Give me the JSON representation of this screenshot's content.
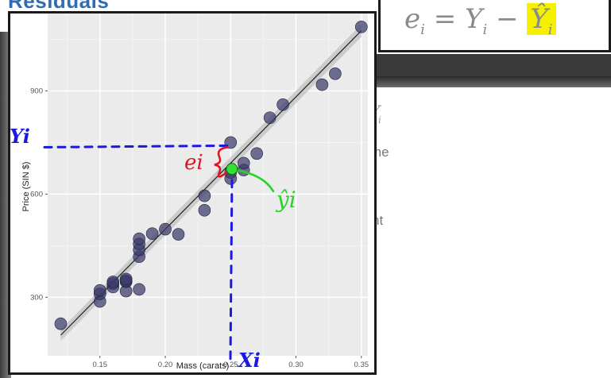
{
  "slide": {
    "title": "Residuals",
    "formula": {
      "lhs": "e",
      "lhs_sub": "i",
      "eq": " = ",
      "y": "Y",
      "y_sub": "i",
      "minus": " − ",
      "yhat": "Ŷ",
      "yhat_sub": "i"
    },
    "behind_text": [
      "Y",
      "i",
      "me",
      "nt"
    ]
  },
  "chart_data": {
    "type": "scatter",
    "xlabel": "Mass (carats)",
    "ylabel": "Price (SIN $)",
    "xlim": [
      0.11,
      0.355
    ],
    "ylim": [
      130,
      1125
    ],
    "xticks": [
      0.15,
      0.2,
      0.25,
      0.3,
      0.35
    ],
    "xtick_labels": [
      "0.15",
      "0.20",
      "0.25",
      "0.30",
      "0.35"
    ],
    "yticks": [
      300,
      600,
      900
    ],
    "ytick_labels": [
      "300",
      "600",
      "900"
    ],
    "grid": true,
    "fit_line": {
      "x": [
        0.12,
        0.35
      ],
      "y": [
        190,
        1075
      ]
    },
    "points": [
      {
        "x": 0.12,
        "y": 223
      },
      {
        "x": 0.15,
        "y": 288
      },
      {
        "x": 0.15,
        "y": 310
      },
      {
        "x": 0.15,
        "y": 320
      },
      {
        "x": 0.16,
        "y": 330
      },
      {
        "x": 0.16,
        "y": 340
      },
      {
        "x": 0.16,
        "y": 345
      },
      {
        "x": 0.17,
        "y": 318
      },
      {
        "x": 0.17,
        "y": 345
      },
      {
        "x": 0.17,
        "y": 348
      },
      {
        "x": 0.17,
        "y": 353
      },
      {
        "x": 0.18,
        "y": 323
      },
      {
        "x": 0.18,
        "y": 418
      },
      {
        "x": 0.18,
        "y": 438
      },
      {
        "x": 0.18,
        "y": 455
      },
      {
        "x": 0.18,
        "y": 470
      },
      {
        "x": 0.19,
        "y": 485
      },
      {
        "x": 0.2,
        "y": 498
      },
      {
        "x": 0.21,
        "y": 483
      },
      {
        "x": 0.23,
        "y": 553
      },
      {
        "x": 0.23,
        "y": 595
      },
      {
        "x": 0.25,
        "y": 645
      },
      {
        "x": 0.25,
        "y": 663
      },
      {
        "x": 0.25,
        "y": 750
      },
      {
        "x": 0.26,
        "y": 670
      },
      {
        "x": 0.26,
        "y": 690
      },
      {
        "x": 0.27,
        "y": 718
      },
      {
        "x": 0.28,
        "y": 822
      },
      {
        "x": 0.29,
        "y": 860
      },
      {
        "x": 0.32,
        "y": 918
      },
      {
        "x": 0.33,
        "y": 950
      },
      {
        "x": 0.35,
        "y": 1086
      }
    ],
    "highlight": {
      "x": 0.251,
      "y": 673,
      "color": "#32e032"
    },
    "annotations": {
      "yi": "Yi",
      "xi": "Xi",
      "ei": "ei",
      "yhat": "ŷi",
      "blue": "#1a1adf",
      "red": "#e0141e",
      "green": "#2ad12a"
    },
    "colors": {
      "panel": "#ebebeb",
      "grid": "#ffffff",
      "point": "#3a3a6a",
      "line": "#222222"
    }
  }
}
